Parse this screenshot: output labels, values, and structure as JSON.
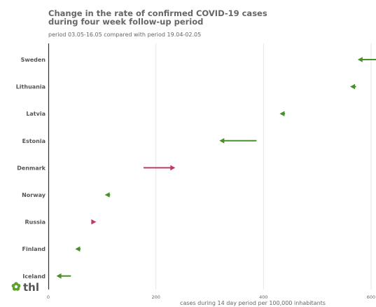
{
  "chart_data": {
    "type": "arrow",
    "title_line1": "Change in the rate of confirmed COVID-19 cases",
    "title_line2": "during four week follow-up period",
    "subtitle": "period 03.05-16.05 compared with period 19.04-02.05",
    "xlabel": "cases during 14 day period per 100,000 inhabitants",
    "xlim": [
      0,
      600
    ],
    "xticks": [
      0,
      200,
      400,
      600
    ],
    "grid": "vertical",
    "series": [
      {
        "category": "Sweden",
        "from": 612,
        "to": 575
      },
      {
        "category": "Lithuania",
        "from": 572,
        "to": 561
      },
      {
        "category": "Latvia",
        "from": 440,
        "to": 430
      },
      {
        "category": "Estonia",
        "from": 387,
        "to": 318
      },
      {
        "category": "Denmark",
        "from": 177,
        "to": 236
      },
      {
        "category": "Norway",
        "from": 115,
        "to": 105
      },
      {
        "category": "Russia",
        "from": 80,
        "to": 89
      },
      {
        "category": "Finland",
        "from": 60,
        "to": 50
      },
      {
        "category": "Iceland",
        "from": 42,
        "to": 15
      }
    ],
    "colors": {
      "decrease": "#4a8f2a",
      "increase": "#c0396a"
    }
  },
  "logo": {
    "text": "thl",
    "icon": "thl-flower-icon",
    "color": "#5ba32b"
  }
}
